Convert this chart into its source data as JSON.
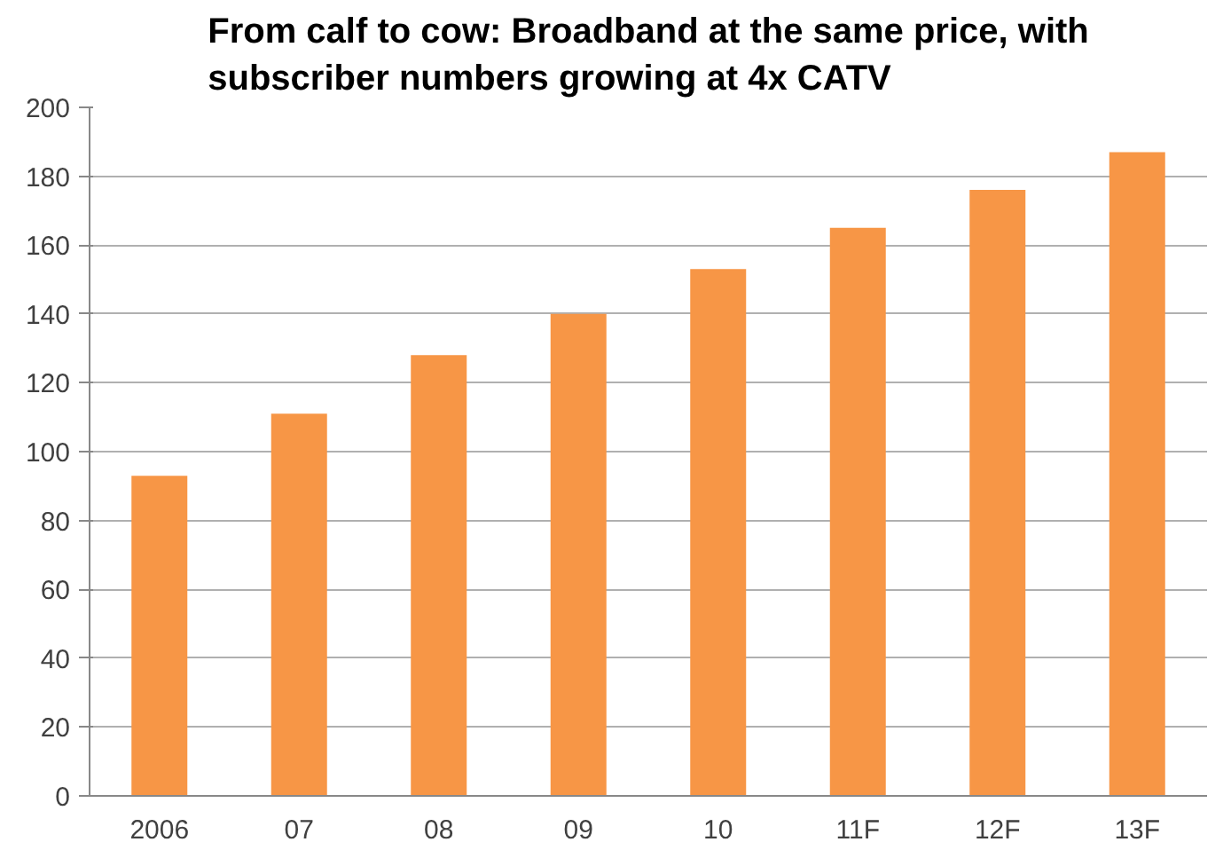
{
  "chart_data": {
    "type": "bar",
    "title": "From calf to cow: Broadband at the same price, with subscriber numbers growing at 4x CATV",
    "categories": [
      "2006",
      "07",
      "08",
      "09",
      "10",
      "11F",
      "12F",
      "13F"
    ],
    "values": [
      93,
      111,
      128,
      140,
      153,
      165,
      176,
      187
    ],
    "color": "#f79646",
    "ylim": [
      0,
      200
    ],
    "yticks": [
      0,
      20,
      40,
      60,
      80,
      100,
      120,
      140,
      160,
      180,
      200
    ],
    "grid": "y"
  }
}
